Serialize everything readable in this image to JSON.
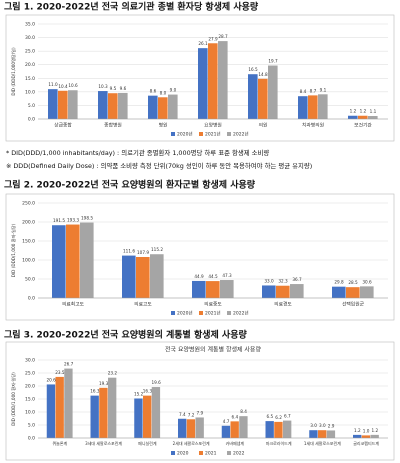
{
  "chart_data": [
    {
      "type": "bar",
      "caption": "그림 1. 2020-2022년 전국 의료기관 종별 환자당 항생제 사용량",
      "y_label": "DID (DDD/1,000명당/일)",
      "categories": [
        "상급종합",
        "종합병원",
        "병원",
        "요양병원",
        "의원",
        "치과병의원",
        "보건기관"
      ],
      "series": [
        {
          "name": "2020년",
          "color": "#4472c4",
          "values": [
            11.0,
            10.3,
            8.6,
            26.1,
            16.5,
            8.4,
            1.2
          ],
          "value_labels": [
            "11.0",
            "10.3",
            "8.6",
            "26.1",
            "16.5",
            "8.4",
            "1.2"
          ]
        },
        {
          "name": "2021년",
          "color": "#ed7d31",
          "values": [
            10.4,
            9.5,
            8.0,
            27.9,
            14.8,
            8.7,
            1.2
          ],
          "value_labels": [
            "10.4",
            "9.5",
            "8.0",
            "27.9",
            "14.8",
            "8.7",
            "1.2"
          ]
        },
        {
          "name": "2022년",
          "color": "#a5a5a5",
          "values": [
            10.6,
            9.6,
            9.0,
            28.7,
            19.7,
            9.1,
            1.1
          ],
          "value_labels": [
            "10.6",
            "9.6",
            "9.0",
            "28.7",
            "19.7",
            "9.1",
            "1.1"
          ]
        }
      ],
      "ylim": [
        0,
        35
      ],
      "yticks": [
        {
          "value": 0,
          "label": "0.0"
        },
        {
          "value": 5,
          "label": "5.0"
        },
        {
          "value": 10,
          "label": "10.0"
        },
        {
          "value": 15,
          "label": "15.0"
        },
        {
          "value": 20,
          "label": "20.0"
        },
        {
          "value": 25,
          "label": "25.0"
        },
        {
          "value": 30,
          "label": "30.0"
        },
        {
          "value": 35,
          "label": "35.0"
        }
      ],
      "grid": true
    },
    {
      "type": "bar",
      "caption": "그림 2. 2020-2022년 전국 요양병원의 환자군별 항생제 사용량",
      "y_label": "DID (DDD/1,000 환자-일당)",
      "categories": [
        "의료최고도",
        "의료고도",
        "의료중도",
        "의료경도",
        "선택입원군"
      ],
      "series": [
        {
          "name": "2020년",
          "color": "#4472c4",
          "values": [
            191.5,
            111.6,
            44.9,
            33.0,
            29.8
          ],
          "value_labels": [
            "191.5",
            "111.6",
            "44.9",
            "33.0",
            "29.8"
          ]
        },
        {
          "name": "2021년",
          "color": "#ed7d31",
          "values": [
            193.3,
            107.9,
            44.5,
            32.3,
            28.5
          ],
          "value_labels": [
            "193.3",
            "107.9",
            "44.5",
            "32.3",
            "28.5"
          ]
        },
        {
          "name": "2022년",
          "color": "#a5a5a5",
          "values": [
            198.5,
            115.2,
            47.3,
            36.7,
            30.6
          ],
          "value_labels": [
            "198.5",
            "115.2",
            "47.3",
            "36.7",
            "30.6"
          ]
        }
      ],
      "ylim": [
        0,
        250
      ],
      "yticks": [
        {
          "value": 0,
          "label": "0.0"
        },
        {
          "value": 50,
          "label": "50.0"
        },
        {
          "value": 100,
          "label": "100.0"
        },
        {
          "value": 150,
          "label": "150.0"
        },
        {
          "value": 200,
          "label": "200.0"
        },
        {
          "value": 250,
          "label": "250.0"
        }
      ],
      "grid": true
    },
    {
      "type": "bar",
      "caption": "그림 3. 2020-2022년 전국 요양병원의 계통별 항생제 사용량",
      "title": "전국 요양병원의 계통별 항생제 사용량",
      "y_label": "DID (DDD/1,000 환자-일당)",
      "categories": [
        "퀴놀론계",
        "3세대 세팔로스포린계",
        "페니실린계",
        "2세대 세팔로스포린계",
        "카바페넴계",
        "마크로라이드계",
        "1세대 세팔로스포린계",
        "글리코펩티드계"
      ],
      "series": [
        {
          "name": "2020",
          "color": "#4472c4",
          "values": [
            20.6,
            16.3,
            15.2,
            7.4,
            4.7,
            6.5,
            3.0,
            1.2
          ],
          "value_labels": [
            "20.6",
            "16.3",
            "15.2",
            "7.4",
            "4.7",
            "6.5",
            "3.0",
            "1.2"
          ]
        },
        {
          "name": "2021",
          "color": "#ed7d31",
          "values": [
            23.5,
            19.3,
            16.3,
            7.2,
            6.4,
            6.2,
            3.0,
            1.0
          ],
          "value_labels": [
            "23.5",
            "19.3",
            "16.3",
            "7.2",
            "6.4",
            "6.2",
            "3.0",
            "1.0"
          ]
        },
        {
          "name": "2022",
          "color": "#a5a5a5",
          "values": [
            26.7,
            23.2,
            19.6,
            7.9,
            8.4,
            6.7,
            2.9,
            1.2
          ],
          "value_labels": [
            "26.7",
            "23.2",
            "19.6",
            "7.9",
            "8.4",
            "6.7",
            "2.9",
            "1.2"
          ]
        }
      ],
      "ylim": [
        0,
        30
      ],
      "yticks": [
        {
          "value": 0,
          "label": "0.0"
        },
        {
          "value": 5,
          "label": "5.0"
        },
        {
          "value": 10,
          "label": "10.0"
        },
        {
          "value": 15,
          "label": "15.0"
        },
        {
          "value": 20,
          "label": "20.0"
        },
        {
          "value": 25,
          "label": "25.0"
        },
        {
          "value": 30,
          "label": "30.0"
        }
      ],
      "grid": true
    }
  ],
  "notes": [
    "* DID(DDD/1,000 inhabitants/day) : 의료기관 종별환자 1,000명당 하루 표준 항생제 소비량",
    "※ DDD(Defined Daily Dose) : 의약품 소비량 측정 단위(70kg 성인이 하루 동안 복용하여야 하는 평균 유지량)"
  ]
}
